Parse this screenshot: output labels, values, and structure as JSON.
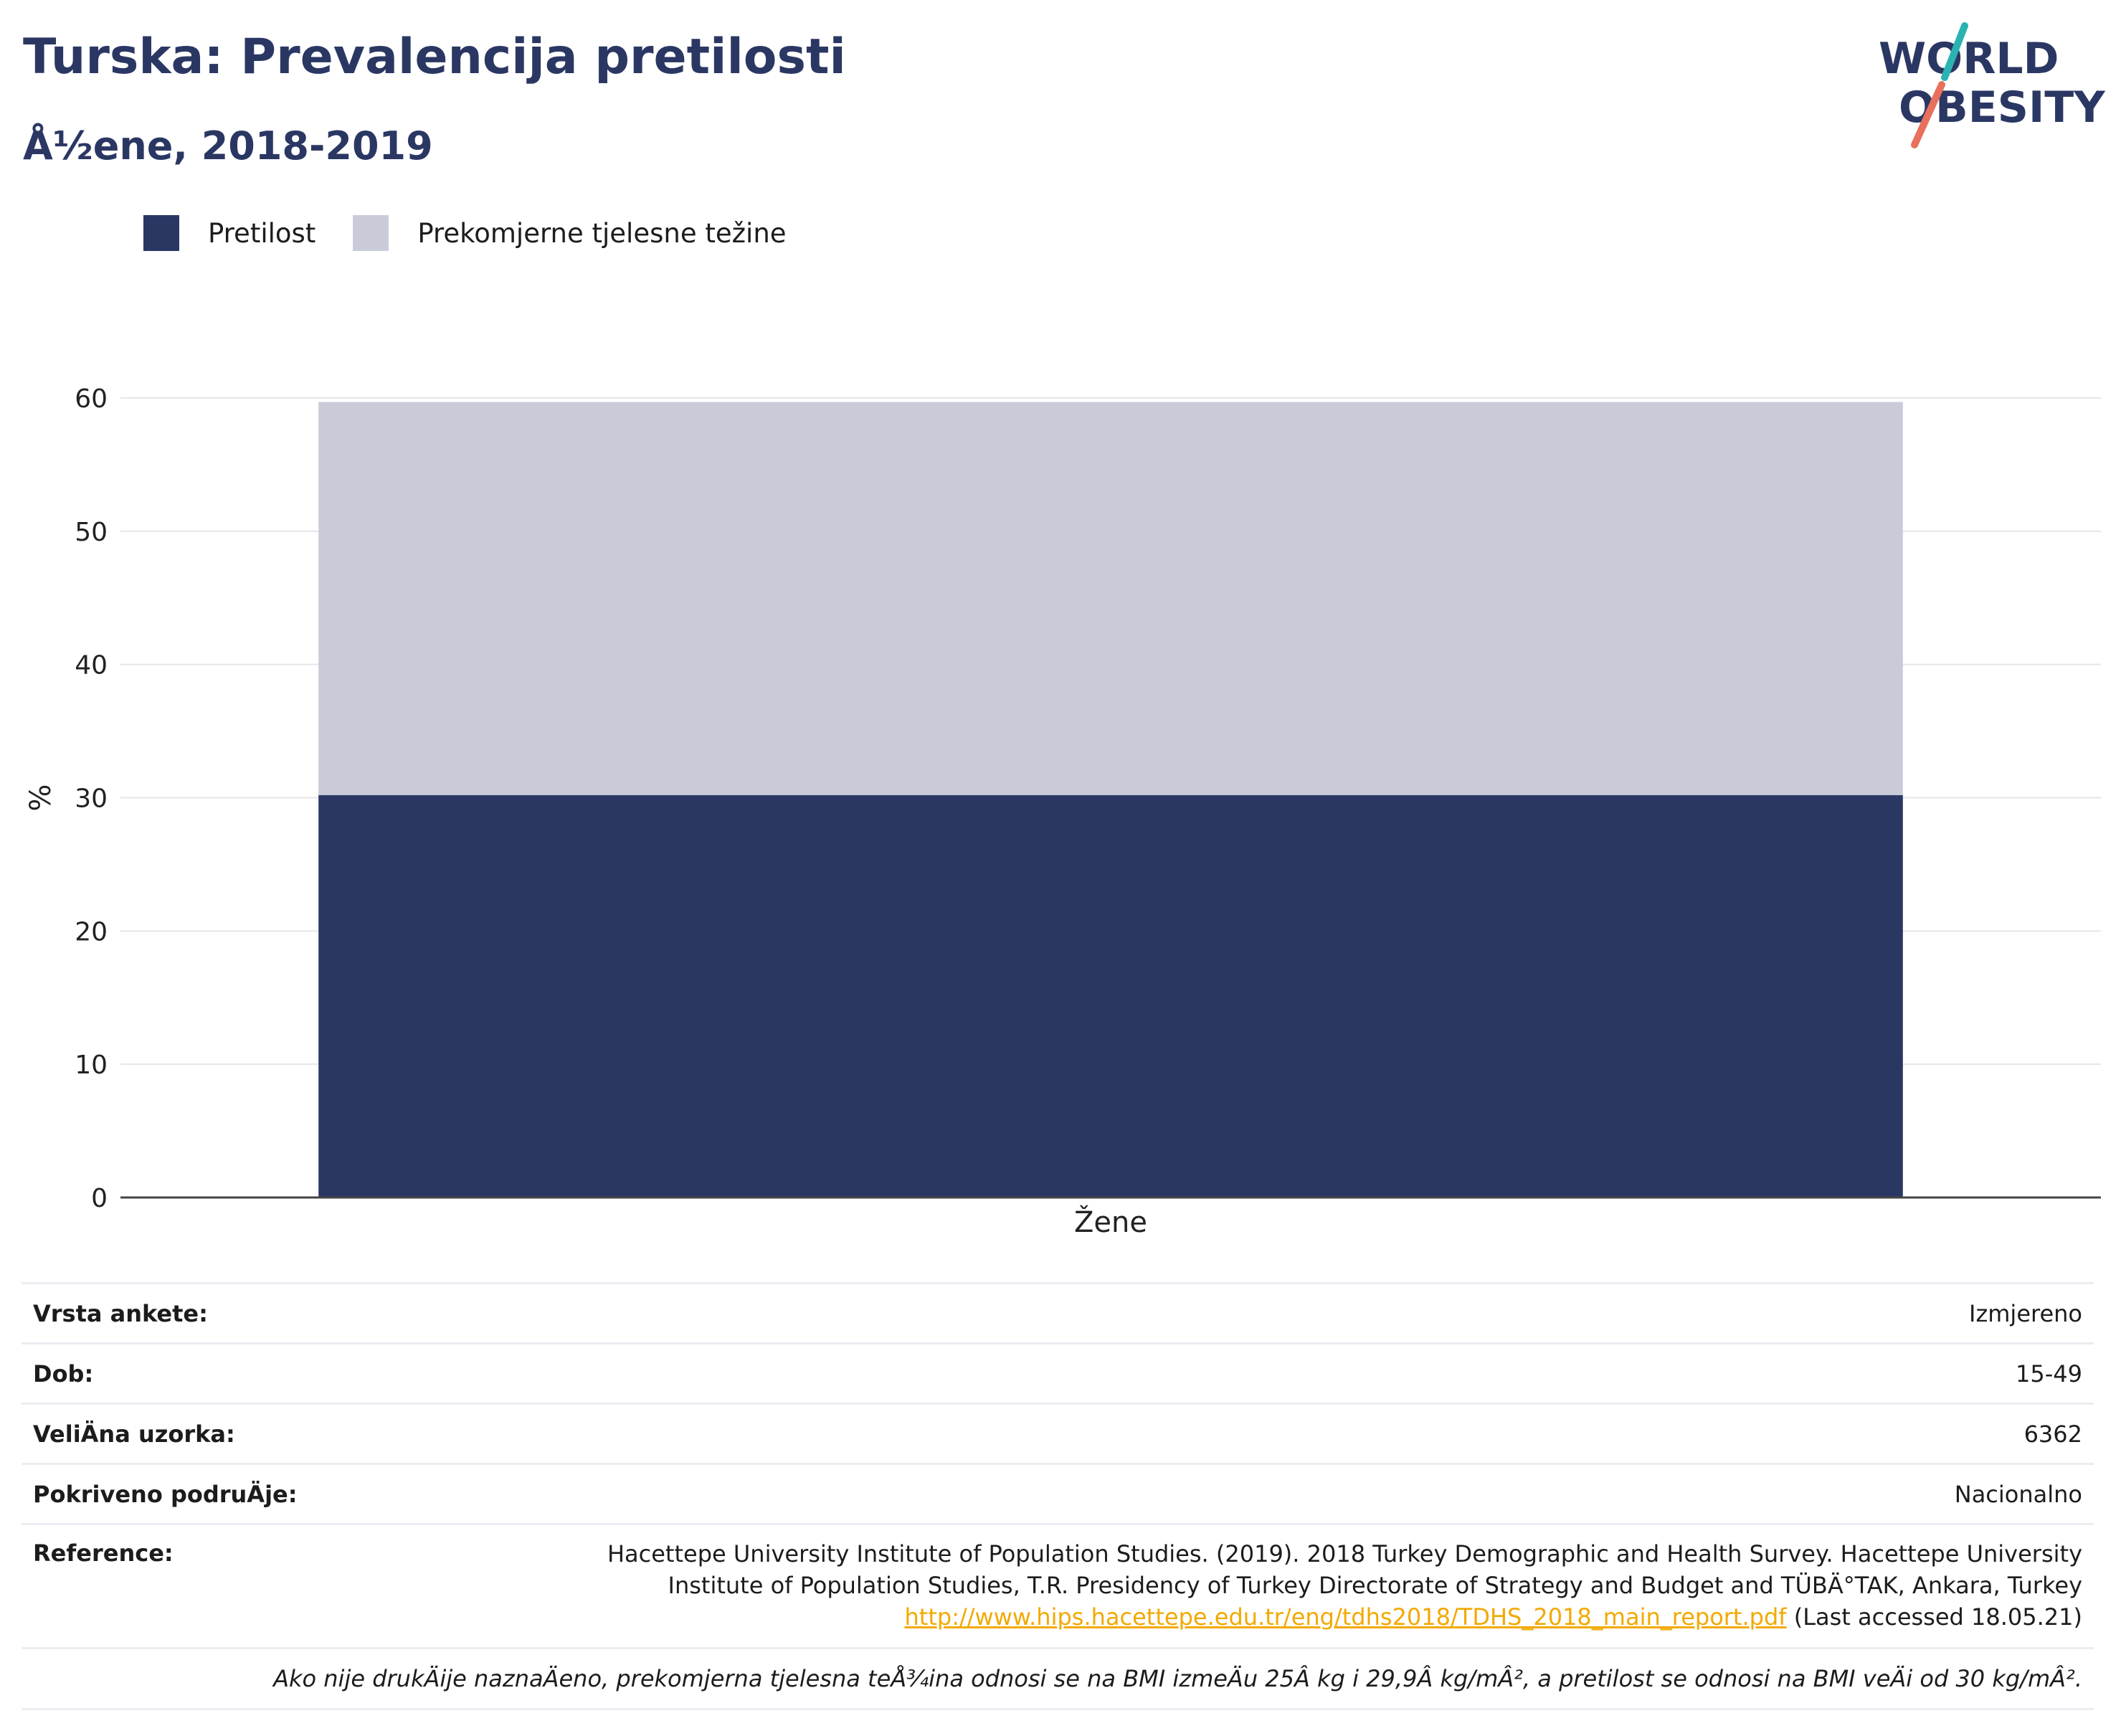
{
  "header": {
    "title": "Turska: Prevalencija pretilosti",
    "subtitle": "Å½ene, 2018-2019"
  },
  "logo": {
    "line1": "WORLD",
    "line2": "OBESITY"
  },
  "colors": {
    "obesity": "#2b3763",
    "overweight": "#c9ccd8",
    "accent_teal": "#2ab3b1",
    "accent_coral": "#e8705c",
    "link": "#f2a900"
  },
  "legend": [
    {
      "label": "Pretilost",
      "color": "#2b3763"
    },
    {
      "label": "Prekomjerne tjelesne težine",
      "color": "#c9ccd8"
    }
  ],
  "chart_data": {
    "type": "bar",
    "stacked": true,
    "categories": [
      "Žene"
    ],
    "series": [
      {
        "name": "Pretilost",
        "values": [
          30.2
        ]
      },
      {
        "name": "Prekomjerne tjelesne težine",
        "values": [
          29.5
        ]
      }
    ],
    "xlabel": "",
    "ylabel": "%",
    "ylim": [
      0,
      60
    ],
    "yticks": [
      0,
      10,
      20,
      30,
      40,
      50,
      60
    ],
    "grid": true,
    "legend_position": "top-left"
  },
  "info": {
    "rows": [
      {
        "key": "Vrsta ankete:",
        "value": "Izmjereno"
      },
      {
        "key": "Dob:",
        "value": "15-49"
      },
      {
        "key": "VeliÄna uzorka:",
        "value": "6362"
      },
      {
        "key": "Pokriveno podruÄje:",
        "value": "Nacionalno"
      }
    ],
    "reference": {
      "key": "Reference:",
      "line1": "Hacettepe University Institute of Population Studies. (2019). 2018 Turkey Demographic and Health Survey. Hacettepe University",
      "line2": "Institute of Population Studies, T.R. Presidency of Turkey Directorate of Strategy and Budget and TÜBÄ°TAK, Ankara, Turkey",
      "link": "http://www.hips.hacettepe.edu.tr/eng/tdhs2018/TDHS_2018_main_report.pdf",
      "accessed": " (Last accessed 18.05.21)"
    },
    "note": "Ako nije drukÄije naznaÄeno, prekomjerna tjelesna teÅ¾ina odnosi se na BMI izmeÄu 25Â kg i 29,9Â kg/mÂ², a pretilost se odnosi na BMI veÄi od 30 kg/mÂ²."
  }
}
